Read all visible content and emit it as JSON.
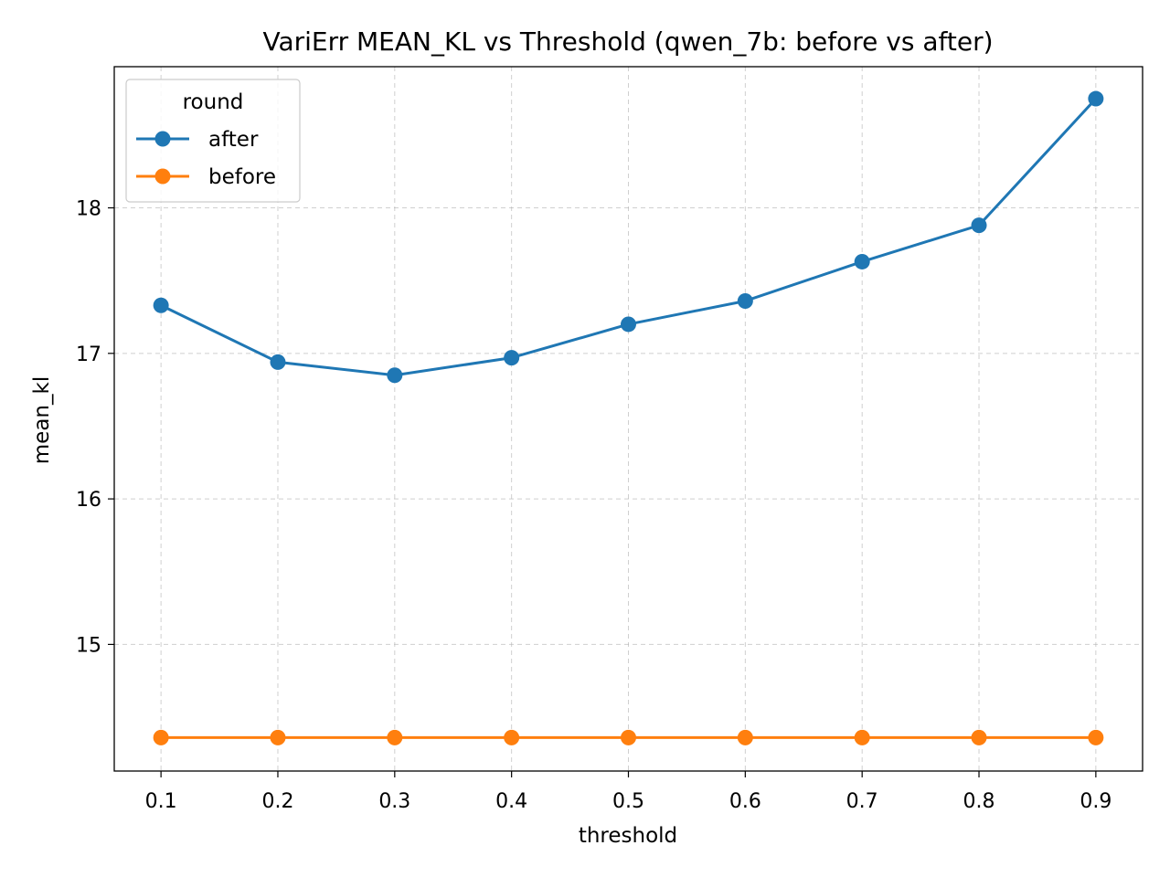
{
  "chart_data": {
    "type": "line",
    "title": "VariErr MEAN_KL vs Threshold (qwen_7b: before vs after)",
    "xlabel": "threshold",
    "ylabel": "mean_kl",
    "x": [
      0.1,
      0.2,
      0.3,
      0.4,
      0.5,
      0.6,
      0.7,
      0.8,
      0.9
    ],
    "x_tick_labels": [
      "0.1",
      "0.2",
      "0.3",
      "0.4",
      "0.5",
      "0.6",
      "0.7",
      "0.8",
      "0.9"
    ],
    "xlim": [
      0.06,
      0.94
    ],
    "y_ticks": [
      15,
      16,
      17,
      18
    ],
    "y_tick_labels": [
      "15",
      "16",
      "17",
      "18"
    ],
    "ylim": [
      14.13,
      18.97
    ],
    "grid": true,
    "legend": {
      "title": "round",
      "placement": "upper-left"
    },
    "series": [
      {
        "name": "after",
        "color": "#1f77b4",
        "marker": "circle",
        "values": [
          17.33,
          16.94,
          16.85,
          16.97,
          17.2,
          17.36,
          17.63,
          17.88,
          18.75
        ]
      },
      {
        "name": "before",
        "color": "#ff7f0e",
        "marker": "circle",
        "values": [
          14.36,
          14.36,
          14.36,
          14.36,
          14.36,
          14.36,
          14.36,
          14.36,
          14.36
        ]
      }
    ]
  }
}
